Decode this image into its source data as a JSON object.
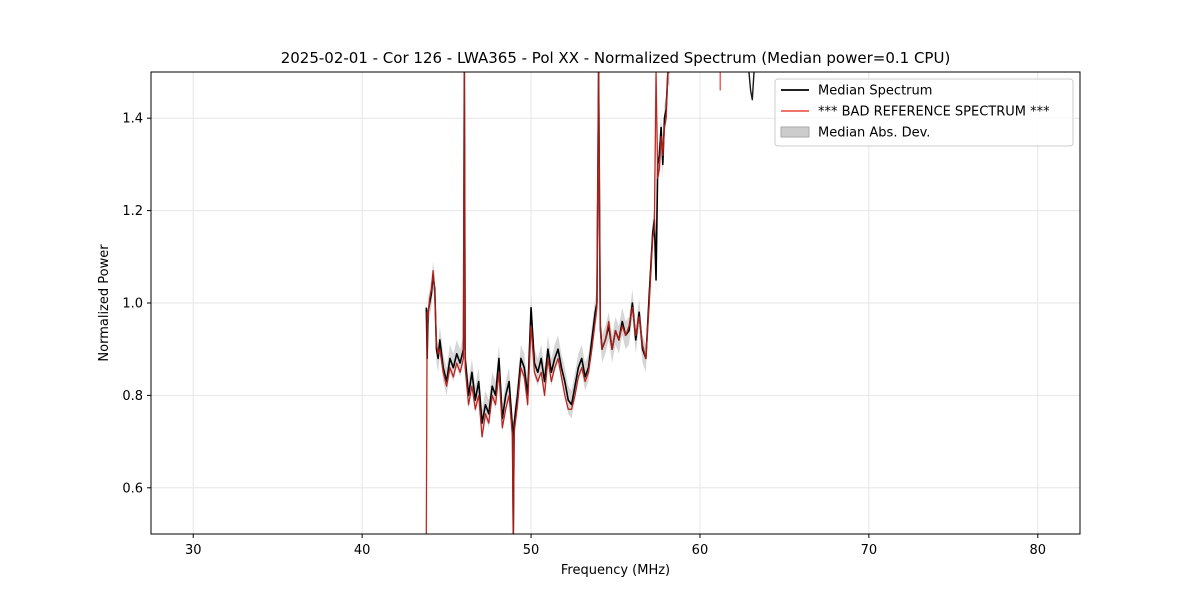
{
  "chart_data": {
    "type": "line",
    "title": "2025-02-01 - Cor 126 - LWA365 - Pol XX - Normalized Spectrum (Median power=0.1 CPU)",
    "xlabel": "Frequency (MHz)",
    "ylabel": "Normalized Power",
    "xlim": [
      27.5,
      82.5
    ],
    "ylim": [
      0.5,
      1.5
    ],
    "xticks": [
      30,
      40,
      50,
      60,
      70,
      80
    ],
    "yticks": [
      0.6,
      0.8,
      1.0,
      1.2,
      1.4
    ],
    "grid": true,
    "legend_position": "upper-right",
    "series": [
      {
        "name": "Median Spectrum",
        "color": "#000000",
        "x": [
          43.8,
          43.85,
          43.9,
          44.0,
          44.1,
          44.2,
          44.3,
          44.4,
          44.5,
          44.6,
          44.8,
          45.0,
          45.2,
          45.4,
          45.6,
          45.8,
          46.0,
          46.05,
          46.1,
          46.3,
          46.5,
          46.7,
          46.9,
          47.1,
          47.3,
          47.5,
          47.7,
          47.9,
          48.1,
          48.3,
          48.5,
          48.7,
          48.9,
          48.95,
          49.0,
          49.2,
          49.4,
          49.6,
          49.8,
          50.0,
          50.2,
          50.4,
          50.6,
          50.8,
          51.0,
          51.2,
          51.4,
          51.6,
          51.8,
          52.0,
          52.2,
          52.4,
          52.6,
          52.8,
          53.0,
          53.2,
          53.4,
          53.6,
          53.8,
          53.9,
          54.0,
          54.1,
          54.2,
          54.4,
          54.6,
          54.8,
          55.0,
          55.2,
          55.4,
          55.6,
          55.8,
          56.0,
          56.2,
          56.4,
          56.6,
          56.8,
          57.0,
          57.2,
          57.3,
          57.4,
          57.5,
          57.6,
          57.7,
          57.8,
          57.9,
          58.0,
          58.1,
          58.2
        ],
        "values": [
          0.99,
          0.88,
          0.98,
          1.0,
          1.02,
          1.06,
          1.03,
          0.9,
          0.88,
          0.92,
          0.86,
          0.83,
          0.88,
          0.86,
          0.89,
          0.87,
          0.9,
          1.5,
          0.88,
          0.8,
          0.85,
          0.79,
          0.83,
          0.74,
          0.78,
          0.76,
          0.82,
          0.8,
          0.88,
          0.75,
          0.8,
          0.83,
          0.73,
          0.5,
          0.74,
          0.8,
          0.88,
          0.86,
          0.8,
          0.99,
          0.87,
          0.85,
          0.88,
          0.83,
          0.9,
          0.85,
          0.88,
          0.9,
          0.86,
          0.83,
          0.79,
          0.78,
          0.82,
          0.86,
          0.88,
          0.84,
          0.86,
          0.92,
          0.98,
          1.0,
          1.5,
          0.95,
          0.9,
          0.92,
          0.95,
          0.9,
          0.94,
          0.92,
          0.96,
          0.93,
          0.94,
          1.0,
          0.92,
          0.98,
          0.9,
          0.88,
          1.02,
          1.15,
          1.18,
          1.05,
          1.3,
          1.32,
          1.38,
          1.3,
          1.4,
          1.42,
          1.5,
          1.5
        ]
      },
      {
        "name": "*** BAD REFERENCE SPECTRUM ***",
        "color": "#e8463c",
        "x": [
          43.8,
          43.85,
          43.9,
          44.0,
          44.1,
          44.2,
          44.3,
          44.4,
          44.5,
          44.6,
          44.8,
          45.0,
          45.2,
          45.4,
          45.6,
          45.8,
          46.0,
          46.05,
          46.1,
          46.3,
          46.5,
          46.7,
          46.9,
          47.1,
          47.3,
          47.5,
          47.7,
          47.9,
          48.1,
          48.3,
          48.5,
          48.7,
          48.9,
          48.95,
          49.0,
          49.2,
          49.4,
          49.6,
          49.8,
          50.0,
          50.2,
          50.4,
          50.6,
          50.8,
          51.0,
          51.2,
          51.4,
          51.6,
          51.8,
          52.0,
          52.2,
          52.4,
          52.6,
          52.8,
          53.0,
          53.2,
          53.4,
          53.6,
          53.8,
          53.9,
          54.0,
          54.1,
          54.2,
          54.4,
          54.6,
          54.8,
          55.0,
          55.2,
          55.4,
          55.6,
          55.8,
          56.0,
          56.2,
          56.4,
          56.6,
          56.8,
          57.0,
          57.2,
          57.3,
          57.4,
          57.5,
          57.6,
          57.7,
          57.8,
          57.9,
          58.0,
          58.1,
          58.2
        ],
        "values": [
          0.5,
          0.98,
          0.97,
          1.01,
          1.03,
          1.07,
          1.02,
          0.91,
          0.89,
          0.9,
          0.85,
          0.82,
          0.86,
          0.84,
          0.87,
          0.85,
          0.88,
          1.5,
          0.86,
          0.78,
          0.82,
          0.77,
          0.8,
          0.71,
          0.76,
          0.74,
          0.8,
          0.78,
          0.85,
          0.73,
          0.77,
          0.8,
          0.71,
          0.5,
          0.72,
          0.78,
          0.86,
          0.84,
          0.78,
          0.95,
          0.85,
          0.83,
          0.85,
          0.8,
          0.88,
          0.83,
          0.86,
          0.88,
          0.84,
          0.8,
          0.77,
          0.77,
          0.8,
          0.84,
          0.86,
          0.83,
          0.85,
          0.9,
          0.96,
          0.99,
          1.5,
          0.94,
          0.9,
          0.92,
          0.96,
          0.9,
          0.94,
          0.92,
          0.95,
          0.93,
          0.95,
          0.99,
          0.93,
          0.97,
          0.91,
          0.88,
          1.0,
          1.14,
          1.16,
          1.5,
          1.27,
          1.29,
          1.36,
          1.32,
          1.38,
          1.4,
          1.5,
          1.5
        ]
      },
      {
        "name": "Median Abs. Dev.",
        "color": "#aaaaaa",
        "type": "band",
        "width": 0.03
      }
    ],
    "extra_segments": [
      {
        "x": [
          61.2,
          61.2
        ],
        "values": [
          1.46,
          1.5
        ],
        "color": "#e8463c"
      },
      {
        "x": [
          62.9,
          63.0,
          63.1,
          63.2
        ],
        "values": [
          1.5,
          1.46,
          1.44,
          1.5
        ],
        "color": "#000000"
      }
    ]
  }
}
